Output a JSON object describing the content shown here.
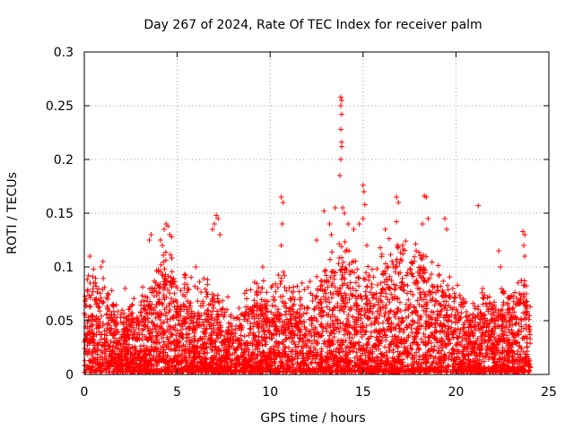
{
  "chart_data": {
    "type": "scatter",
    "title": "Day 267 of 2024, Rate Of TEC Index for receiver palm",
    "xlabel": "GPS time / hours",
    "ylabel": "ROTI / TECUs",
    "xlim": [
      0,
      25
    ],
    "ylim": [
      0,
      0.3
    ],
    "xticks": [
      0,
      5,
      10,
      15,
      20,
      25
    ],
    "yticks": [
      0,
      0.05,
      0.1,
      0.15,
      0.2,
      0.25,
      0.3
    ],
    "xtick_labels": [
      "0",
      "5",
      "10",
      "15",
      "20",
      "25"
    ],
    "ytick_labels": [
      "0",
      "0.05",
      "0.1",
      "0.15",
      "0.2",
      "0.25",
      "0.3"
    ],
    "grid": true,
    "marker": "+",
    "marker_color": "#ff0000",
    "axis_color": "#000000",
    "grid_color": "#a0a0a0",
    "series": [
      {
        "name": "ROTI",
        "dense_band": {
          "x_range": [
            0,
            24
          ],
          "envelope_x": [
            0.0,
            0.5,
            1.0,
            1.5,
            2.0,
            2.5,
            3.0,
            3.5,
            4.0,
            4.5,
            5.0,
            5.5,
            6.0,
            6.5,
            7.0,
            7.5,
            8.0,
            8.5,
            9.0,
            9.5,
            10.0,
            10.5,
            11.0,
            11.5,
            12.0,
            12.5,
            13.0,
            13.5,
            14.0,
            14.5,
            15.0,
            15.5,
            16.0,
            16.5,
            17.0,
            17.5,
            18.0,
            18.5,
            19.0,
            19.5,
            20.0,
            20.5,
            21.0,
            21.5,
            22.0,
            22.5,
            23.0,
            23.5,
            24.0
          ],
          "envelope_y": [
            0.08,
            0.095,
            0.09,
            0.07,
            0.06,
            0.065,
            0.075,
            0.085,
            0.11,
            0.12,
            0.09,
            0.085,
            0.08,
            0.08,
            0.085,
            0.075,
            0.055,
            0.07,
            0.08,
            0.085,
            0.08,
            0.095,
            0.08,
            0.075,
            0.08,
            0.095,
            0.1,
            0.11,
            0.115,
            0.1,
            0.09,
            0.1,
            0.11,
            0.12,
            0.125,
            0.11,
            0.125,
            0.11,
            0.1,
            0.09,
            0.08,
            0.07,
            0.065,
            0.08,
            0.07,
            0.08,
            0.07,
            0.09,
            0.07
          ]
        },
        "outliers": [
          {
            "x": 0.1,
            "y": 0.07
          },
          {
            "x": 0.3,
            "y": 0.11
          },
          {
            "x": 0.5,
            "y": 0.098
          },
          {
            "x": 0.9,
            "y": 0.1
          },
          {
            "x": 1.0,
            "y": 0.105
          },
          {
            "x": 2.2,
            "y": 0.08
          },
          {
            "x": 3.5,
            "y": 0.125
          },
          {
            "x": 3.6,
            "y": 0.13
          },
          {
            "x": 4.1,
            "y": 0.125
          },
          {
            "x": 4.2,
            "y": 0.12
          },
          {
            "x": 4.3,
            "y": 0.135
          },
          {
            "x": 4.4,
            "y": 0.14
          },
          {
            "x": 4.5,
            "y": 0.138
          },
          {
            "x": 4.6,
            "y": 0.13
          },
          {
            "x": 4.7,
            "y": 0.128
          },
          {
            "x": 6.0,
            "y": 0.1
          },
          {
            "x": 6.9,
            "y": 0.135
          },
          {
            "x": 7.0,
            "y": 0.14
          },
          {
            "x": 7.1,
            "y": 0.148
          },
          {
            "x": 7.2,
            "y": 0.145
          },
          {
            "x": 7.3,
            "y": 0.13
          },
          {
            "x": 9.6,
            "y": 0.1
          },
          {
            "x": 10.6,
            "y": 0.165
          },
          {
            "x": 10.7,
            "y": 0.16
          },
          {
            "x": 10.65,
            "y": 0.14
          },
          {
            "x": 10.6,
            "y": 0.12
          },
          {
            "x": 12.5,
            "y": 0.125
          },
          {
            "x": 12.9,
            "y": 0.152
          },
          {
            "x": 13.2,
            "y": 0.14
          },
          {
            "x": 13.3,
            "y": 0.13
          },
          {
            "x": 13.5,
            "y": 0.155
          },
          {
            "x": 13.8,
            "y": 0.258
          },
          {
            "x": 13.85,
            "y": 0.255
          },
          {
            "x": 13.8,
            "y": 0.25
          },
          {
            "x": 13.85,
            "y": 0.242
          },
          {
            "x": 13.8,
            "y": 0.228
          },
          {
            "x": 13.85,
            "y": 0.216
          },
          {
            "x": 13.85,
            "y": 0.212
          },
          {
            "x": 13.8,
            "y": 0.2
          },
          {
            "x": 13.75,
            "y": 0.185
          },
          {
            "x": 13.9,
            "y": 0.155
          },
          {
            "x": 14.0,
            "y": 0.15
          },
          {
            "x": 14.2,
            "y": 0.14
          },
          {
            "x": 14.5,
            "y": 0.135
          },
          {
            "x": 14.8,
            "y": 0.14
          },
          {
            "x": 15.0,
            "y": 0.176
          },
          {
            "x": 15.05,
            "y": 0.17
          },
          {
            "x": 15.1,
            "y": 0.158
          },
          {
            "x": 15.0,
            "y": 0.145
          },
          {
            "x": 15.2,
            "y": 0.12
          },
          {
            "x": 16.2,
            "y": 0.135
          },
          {
            "x": 16.8,
            "y": 0.165
          },
          {
            "x": 16.9,
            "y": 0.16
          },
          {
            "x": 16.8,
            "y": 0.142
          },
          {
            "x": 18.3,
            "y": 0.166
          },
          {
            "x": 18.4,
            "y": 0.165
          },
          {
            "x": 18.2,
            "y": 0.14
          },
          {
            "x": 18.5,
            "y": 0.145
          },
          {
            "x": 19.4,
            "y": 0.145
          },
          {
            "x": 19.5,
            "y": 0.135
          },
          {
            "x": 21.2,
            "y": 0.157
          },
          {
            "x": 22.3,
            "y": 0.115
          },
          {
            "x": 22.4,
            "y": 0.1
          },
          {
            "x": 23.6,
            "y": 0.133
          },
          {
            "x": 23.7,
            "y": 0.13
          },
          {
            "x": 23.65,
            "y": 0.12
          },
          {
            "x": 23.7,
            "y": 0.11
          }
        ]
      }
    ]
  }
}
